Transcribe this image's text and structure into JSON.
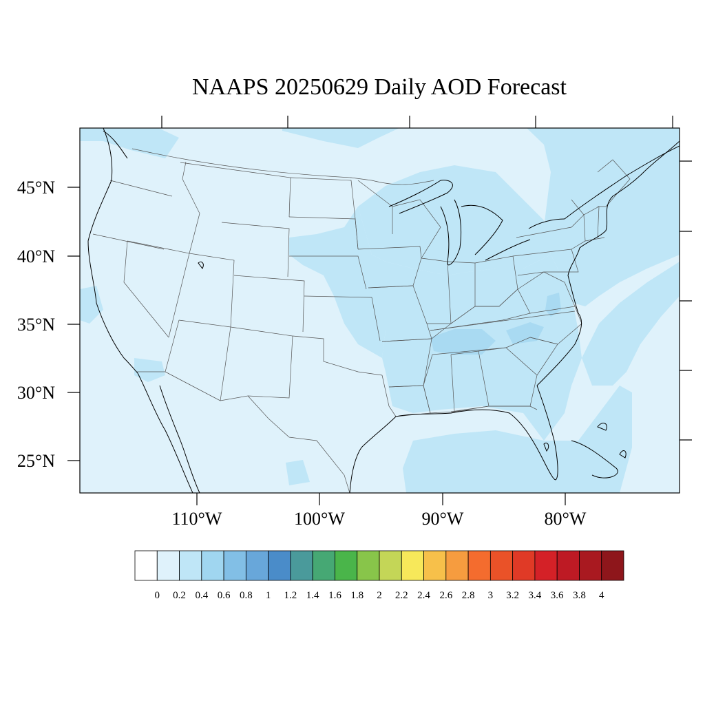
{
  "title": "NAAPS 20250629 Daily AOD Forecast",
  "map": {
    "projection": "lambert-conformal",
    "lat_labels": [
      "45°N",
      "40°N",
      "35°N",
      "30°N",
      "25°N"
    ],
    "lon_labels": [
      "110°W",
      "100°W",
      "90°W",
      "80°W"
    ],
    "background_color": "#dff2fb",
    "enhanced_color": "#bfe6f7",
    "moderate_color": "#a9daf2"
  },
  "colorbar": {
    "labels": [
      "0",
      "0.2",
      "0.4",
      "0.6",
      "0.8",
      "1",
      "1.2",
      "1.4",
      "1.6",
      "1.8",
      "2",
      "2.2",
      "2.4",
      "2.6",
      "2.8",
      "3",
      "3.2",
      "3.4",
      "3.6",
      "3.8",
      "4"
    ],
    "colors": [
      "#ffffff",
      "#dff2fb",
      "#bfe6f7",
      "#a0d6f0",
      "#82bfe6",
      "#68a7da",
      "#4a8cc9",
      "#4a9a9b",
      "#46a874",
      "#4ab54a",
      "#88c54a",
      "#c4d657",
      "#f7e85a",
      "#f7c04a",
      "#f69c3f",
      "#f46c2e",
      "#ea5228",
      "#e03a26",
      "#d42127",
      "#be1a24",
      "#a91920",
      "#8e161b"
    ]
  }
}
